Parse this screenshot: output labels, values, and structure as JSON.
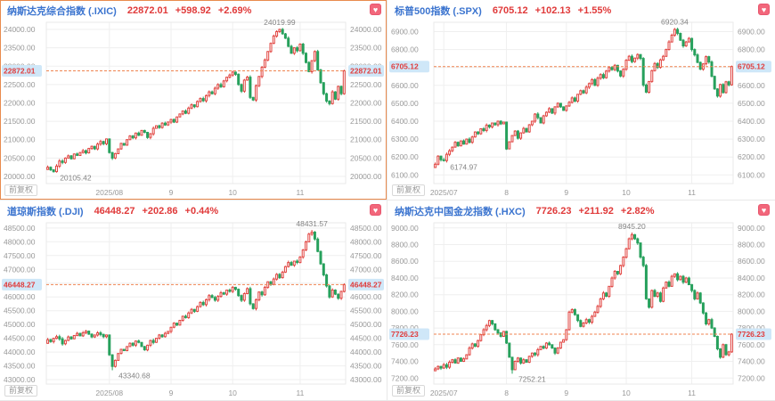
{
  "ui": {
    "favorite_glyph": "♥",
    "colors": {
      "up": "#e14440",
      "down": "#27a15c",
      "grid": "#efefef",
      "plot_border": "#e9e9e9",
      "axis_text": "#999999",
      "annotation": "#848484",
      "price_line": "#ef8350",
      "tag_bg": "#cfe7f8",
      "tag_text": "#e03c3c",
      "title_blue": "#3b74cf",
      "value_red": "#e03a3a",
      "selected_border": "#e98b4e",
      "heart_pink": "#f2677b"
    }
  },
  "chart_data": [
    {
      "type": "candlestick",
      "title": "纳斯达克综合指数 (.IXIC)",
      "price": "22872.01",
      "change": "+598.92",
      "change_pct": "+2.69%",
      "adjust_label": "前复权",
      "selected": true,
      "ylim": [
        19806,
        24194
      ],
      "yticks": [
        20000,
        20500,
        21000,
        21500,
        22000,
        22500,
        23000,
        23500,
        24000
      ],
      "xticks": [
        {
          "i": 21,
          "label": "2025/08"
        },
        {
          "i": 42,
          "label": "9"
        },
        {
          "i": 63,
          "label": "10"
        },
        {
          "i": 86,
          "label": "11"
        }
      ],
      "high": {
        "index": 79,
        "value": 24019.99,
        "label": "24019.99"
      },
      "low": {
        "index": 2,
        "value": 20105.42,
        "label": "20105.42"
      },
      "closes": [
        20250,
        20180,
        20130,
        20280,
        20420,
        20380,
        20500,
        20560,
        20480,
        20610,
        20570,
        20650,
        20700,
        20640,
        20760,
        20820,
        20750,
        20880,
        20950,
        20890,
        21020,
        20650,
        20500,
        20620,
        20750,
        20900,
        20850,
        21000,
        21100,
        21050,
        21180,
        21120,
        21250,
        21200,
        21060,
        21160,
        21310,
        21380,
        21330,
        21450,
        21400,
        21480,
        21550,
        21480,
        21620,
        21700,
        21780,
        21720,
        21860,
        21950,
        21900,
        22040,
        22120,
        22060,
        22200,
        22300,
        22250,
        22400,
        22500,
        22440,
        22600,
        22700,
        22760,
        22840,
        22780,
        22500,
        22320,
        22620,
        22700,
        22150,
        22080,
        22470,
        22720,
        22970,
        23170,
        23400,
        23620,
        23820,
        23940,
        24000,
        23880,
        23760,
        23540,
        23350,
        23500,
        23420,
        23600,
        23350,
        23100,
        22850,
        23150,
        23400,
        22900,
        22550,
        22250,
        22050,
        21980,
        22300,
        22100,
        22450,
        22250,
        22872.01
      ]
    },
    {
      "type": "candlestick",
      "title": "标普500指数 (.SPX)",
      "price": "6705.12",
      "change": "+102.13",
      "change_pct": "+1.55%",
      "adjust_label": "前复权",
      "selected": false,
      "ylim": [
        6052,
        6952
      ],
      "yticks": [
        6100,
        6200,
        6300,
        6400,
        6500,
        6600,
        6700,
        6800,
        6900
      ],
      "xticks": [
        {
          "i": 3,
          "label": "2025/07"
        },
        {
          "i": 25,
          "label": "8"
        },
        {
          "i": 46,
          "label": "9"
        },
        {
          "i": 67,
          "label": "10"
        },
        {
          "i": 90,
          "label": "11"
        }
      ],
      "high": {
        "index": 84,
        "value": 6920.34,
        "label": "6920.34"
      },
      "low": {
        "index": 3,
        "value": 6174.97,
        "label": "6174.97"
      },
      "closes": [
        6160,
        6205,
        6185,
        6180,
        6215,
        6235,
        6255,
        6282,
        6262,
        6290,
        6272,
        6300,
        6282,
        6312,
        6340,
        6330,
        6358,
        6348,
        6378,
        6368,
        6390,
        6380,
        6400,
        6385,
        6395,
        6245,
        6285,
        6320,
        6345,
        6305,
        6335,
        6360,
        6340,
        6380,
        6400,
        6440,
        6420,
        6390,
        6430,
        6450,
        6470,
        6445,
        6480,
        6500,
        6480,
        6460,
        6485,
        6505,
        6530,
        6512,
        6550,
        6570,
        6558,
        6590,
        6610,
        6632,
        6600,
        6640,
        6660,
        6642,
        6680,
        6700,
        6688,
        6712,
        6680,
        6652,
        6690,
        6740,
        6762,
        6732,
        6752,
        6772,
        6750,
        6602,
        6562,
        6622,
        6682,
        6722,
        6700,
        6742,
        6762,
        6800,
        6842,
        6880,
        6912,
        6890,
        6852,
        6820,
        6842,
        6862,
        6800,
        6770,
        6728,
        6690,
        6720,
        6760,
        6730,
        6650,
        6580,
        6540,
        6605,
        6560,
        6620,
        6603,
        6705.12
      ]
    },
    {
      "type": "candlestick",
      "title": "道琼斯指数 (.DJI)",
      "price": "46448.27",
      "change": "+202.86",
      "change_pct": "+0.44%",
      "adjust_label": "前复权",
      "selected": false,
      "ylim": [
        42840,
        48690
      ],
      "yticks": [
        43000,
        43500,
        44000,
        44500,
        45000,
        45500,
        46000,
        46500,
        47000,
        47500,
        48000,
        48500
      ],
      "xticks": [
        {
          "i": 21,
          "label": "2025/08"
        },
        {
          "i": 42,
          "label": "9"
        },
        {
          "i": 63,
          "label": "10"
        },
        {
          "i": 86,
          "label": "11"
        }
      ],
      "high": {
        "index": 90,
        "value": 48431.57,
        "label": "48431.57"
      },
      "low": {
        "index": 22,
        "value": 43340.68,
        "label": "43340.68"
      },
      "closes": [
        44450,
        44380,
        44500,
        44560,
        44480,
        44300,
        44420,
        44550,
        44480,
        44600,
        44680,
        44590,
        44700,
        44760,
        44650,
        44550,
        44620,
        44700,
        44640,
        44560,
        44620,
        43900,
        43480,
        43700,
        43950,
        44100,
        44050,
        44200,
        44320,
        44250,
        44400,
        44350,
        44200,
        44080,
        44250,
        44420,
        44350,
        44500,
        44620,
        44560,
        44680,
        44750,
        44900,
        45050,
        44980,
        45150,
        45300,
        45250,
        45420,
        45550,
        45480,
        45650,
        45800,
        45720,
        45900,
        46050,
        45980,
        45880,
        46020,
        46150,
        46100,
        46250,
        46200,
        46350,
        46280,
        46050,
        45880,
        46120,
        46300,
        45750,
        45580,
        45900,
        46180,
        46080,
        46350,
        46550,
        46450,
        46650,
        46820,
        46700,
        46900,
        47100,
        47250,
        47150,
        47300,
        47250,
        47450,
        47700,
        48000,
        48280,
        48350,
        48100,
        47650,
        47200,
        46800,
        46400,
        46000,
        46250,
        46100,
        45950,
        46200,
        46448.27
      ]
    },
    {
      "type": "candlestick",
      "title": "纳斯达克中国金龙指数 (.HXC)",
      "price": "7726.23",
      "change": "+211.92",
      "change_pct": "+2.82%",
      "adjust_label": "前复权",
      "selected": false,
      "ylim": [
        7128,
        9062
      ],
      "yticks": [
        7200,
        7400,
        7600,
        7800,
        8000,
        8200,
        8400,
        8600,
        8800,
        9000
      ],
      "xticks": [
        {
          "i": 3,
          "label": "2025/07"
        },
        {
          "i": 25,
          "label": "8"
        },
        {
          "i": 46,
          "label": "9"
        },
        {
          "i": 67,
          "label": "10"
        },
        {
          "i": 90,
          "label": "11"
        }
      ],
      "high": {
        "index": 69,
        "value": 8945.2,
        "label": "8945.20"
      },
      "low": {
        "index": 27,
        "value": 7252.21,
        "label": "7252.21"
      },
      "closes": [
        7310,
        7340,
        7320,
        7360,
        7330,
        7390,
        7420,
        7380,
        7440,
        7400,
        7430,
        7480,
        7560,
        7610,
        7580,
        7650,
        7720,
        7780,
        7830,
        7890,
        7850,
        7780,
        7740,
        7700,
        7760,
        7620,
        7450,
        7300,
        7400,
        7440,
        7380,
        7420,
        7390,
        7460,
        7500,
        7480,
        7540,
        7580,
        7560,
        7620,
        7600,
        7560,
        7500,
        7560,
        7630,
        7660,
        7780,
        7990,
        8020,
        7960,
        7890,
        7820,
        7860,
        7900,
        7870,
        7940,
        7990,
        8060,
        8150,
        8220,
        8180,
        8300,
        8400,
        8480,
        8450,
        8550,
        8650,
        8750,
        8870,
        8920,
        8870,
        8820,
        8650,
        8550,
        8150,
        8050,
        8250,
        8180,
        8220,
        8120,
        8280,
        8350,
        8300,
        8420,
        8450,
        8380,
        8420,
        8350,
        8400,
        8320,
        8250,
        8150,
        8220,
        8100,
        7980,
        7850,
        7900,
        7800,
        7700,
        7550,
        7450,
        7600,
        7480,
        7514,
        7726.23
      ]
    }
  ]
}
